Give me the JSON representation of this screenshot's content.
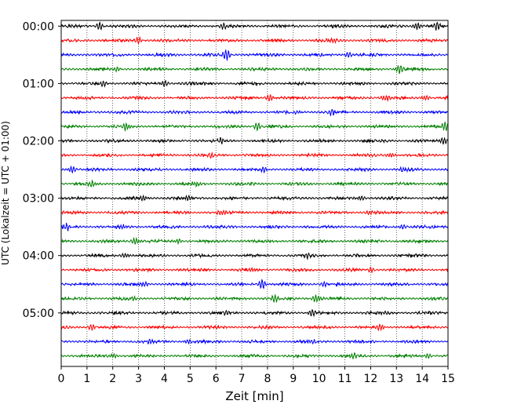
{
  "chart_data": {
    "type": "line",
    "xlabel": "Zeit  [min]",
    "ylabel": "UTC (Lokalzeit = UTC + 01:00)",
    "xlim": [
      0,
      15
    ],
    "xticks": [
      0,
      1,
      2,
      3,
      4,
      5,
      6,
      7,
      8,
      9,
      10,
      11,
      12,
      13,
      14,
      15
    ],
    "ytick_labels": [
      "00:00",
      "01:00",
      "02:00",
      "03:00",
      "04:00",
      "05:00"
    ],
    "ytick_minutes": [
      0,
      60,
      120,
      180,
      240,
      300
    ],
    "trace_start_minutes": [
      0,
      15,
      30,
      45,
      60,
      75,
      90,
      105,
      120,
      135,
      150,
      165,
      180,
      195,
      210,
      225,
      240,
      255,
      270,
      285,
      300,
      315,
      330,
      345
    ],
    "trace_colors": [
      "#000000",
      "#ff0000",
      "#0000ff",
      "#008000"
    ],
    "ylim_minutes": [
      -6,
      356
    ],
    "grid": {
      "x": true,
      "style": "dotted"
    },
    "bursts": [
      {
        "trace": 0,
        "t": 1.5,
        "amp": 0.8
      },
      {
        "trace": 0,
        "t": 6.3,
        "amp": 0.7
      },
      {
        "trace": 0,
        "t": 13.8,
        "amp": 0.9
      },
      {
        "trace": 0,
        "t": 14.6,
        "amp": 1.0
      },
      {
        "trace": 1,
        "t": 3.0,
        "amp": 0.7
      },
      {
        "trace": 1,
        "t": 10.5,
        "amp": 0.6
      },
      {
        "trace": 2,
        "t": 6.4,
        "amp": 1.2
      },
      {
        "trace": 2,
        "t": 11.1,
        "amp": 0.6
      },
      {
        "trace": 3,
        "t": 13.1,
        "amp": 1.0
      },
      {
        "trace": 3,
        "t": 2.2,
        "amp": 0.5
      },
      {
        "trace": 4,
        "t": 1.6,
        "amp": 0.6
      },
      {
        "trace": 4,
        "t": 4.0,
        "amp": 0.6
      },
      {
        "trace": 5,
        "t": 8.1,
        "amp": 0.8
      },
      {
        "trace": 5,
        "t": 12.6,
        "amp": 0.8
      },
      {
        "trace": 5,
        "t": 14.1,
        "amp": 0.6
      },
      {
        "trace": 6,
        "t": 9.2,
        "amp": 0.5
      },
      {
        "trace": 6,
        "t": 10.5,
        "amp": 0.6
      },
      {
        "trace": 7,
        "t": 2.5,
        "amp": 0.9
      },
      {
        "trace": 7,
        "t": 7.6,
        "amp": 0.8
      },
      {
        "trace": 7,
        "t": 14.9,
        "amp": 0.9
      },
      {
        "trace": 8,
        "t": 14.8,
        "amp": 0.8
      },
      {
        "trace": 8,
        "t": 6.2,
        "amp": 0.5
      },
      {
        "trace": 9,
        "t": 5.8,
        "amp": 0.6
      },
      {
        "trace": 9,
        "t": 12.8,
        "amp": 0.6
      },
      {
        "trace": 10,
        "t": 0.4,
        "amp": 0.8
      },
      {
        "trace": 10,
        "t": 7.9,
        "amp": 0.6
      },
      {
        "trace": 10,
        "t": 13.3,
        "amp": 0.6
      },
      {
        "trace": 11,
        "t": 1.2,
        "amp": 0.7
      },
      {
        "trace": 11,
        "t": 5.2,
        "amp": 0.6
      },
      {
        "trace": 12,
        "t": 3.2,
        "amp": 0.6
      },
      {
        "trace": 12,
        "t": 4.9,
        "amp": 0.6
      },
      {
        "trace": 12,
        "t": 11.6,
        "amp": 0.6
      },
      {
        "trace": 13,
        "t": 6.2,
        "amp": 0.6
      },
      {
        "trace": 13,
        "t": 12.0,
        "amp": 0.5
      },
      {
        "trace": 14,
        "t": 0.2,
        "amp": 0.8
      },
      {
        "trace": 14,
        "t": 2.4,
        "amp": 0.7
      },
      {
        "trace": 14,
        "t": 13.2,
        "amp": 0.5
      },
      {
        "trace": 15,
        "t": 2.9,
        "amp": 0.8
      },
      {
        "trace": 15,
        "t": 4.5,
        "amp": 0.6
      },
      {
        "trace": 16,
        "t": 2.5,
        "amp": 0.6
      },
      {
        "trace": 16,
        "t": 9.5,
        "amp": 0.5
      },
      {
        "trace": 17,
        "t": 7.4,
        "amp": 0.4
      },
      {
        "trace": 17,
        "t": 12.0,
        "amp": 0.5
      },
      {
        "trace": 18,
        "t": 3.2,
        "amp": 0.7
      },
      {
        "trace": 18,
        "t": 7.8,
        "amp": 1.1
      },
      {
        "trace": 18,
        "t": 10.2,
        "amp": 0.5
      },
      {
        "trace": 19,
        "t": 8.3,
        "amp": 0.8
      },
      {
        "trace": 19,
        "t": 9.9,
        "amp": 0.9
      },
      {
        "trace": 19,
        "t": 2.8,
        "amp": 0.4
      },
      {
        "trace": 20,
        "t": 9.7,
        "amp": 0.7
      },
      {
        "trace": 20,
        "t": 6.4,
        "amp": 0.5
      },
      {
        "trace": 20,
        "t": 12.5,
        "amp": 0.5
      },
      {
        "trace": 21,
        "t": 1.2,
        "amp": 0.6
      },
      {
        "trace": 21,
        "t": 12.4,
        "amp": 0.7
      },
      {
        "trace": 22,
        "t": 3.4,
        "amp": 0.6
      },
      {
        "trace": 22,
        "t": 4.9,
        "amp": 0.6
      },
      {
        "trace": 22,
        "t": 9.7,
        "amp": 0.5
      },
      {
        "trace": 23,
        "t": 2.0,
        "amp": 0.6
      },
      {
        "trace": 23,
        "t": 11.3,
        "amp": 0.6
      },
      {
        "trace": 23,
        "t": 14.2,
        "amp": 0.5
      }
    ],
    "noise_amplitude": 0.18
  }
}
